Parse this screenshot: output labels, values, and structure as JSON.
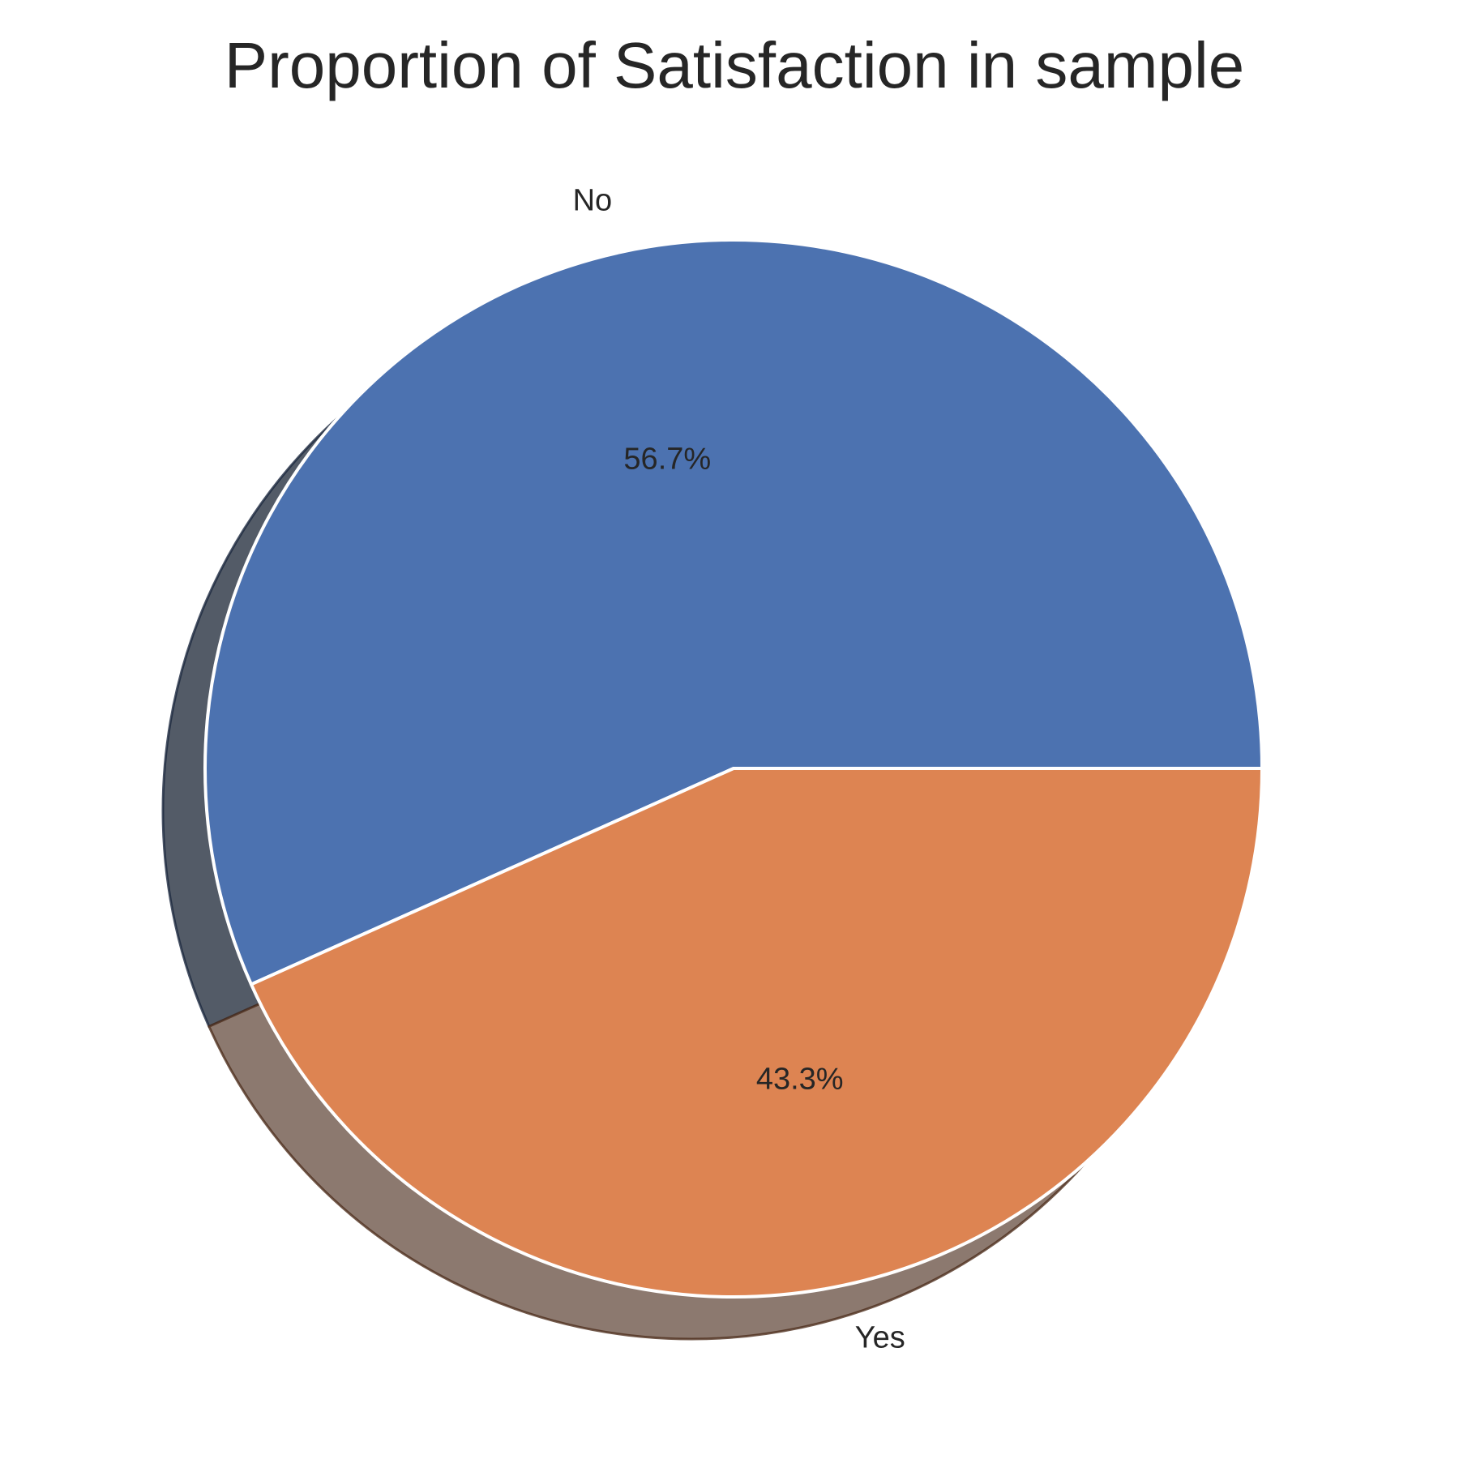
{
  "chart_data": {
    "type": "pie",
    "title": "Proportion of Satisfaction in sample",
    "categories": [
      "No",
      "Yes"
    ],
    "values": [
      56.7,
      43.3
    ],
    "percent_labels": [
      "56.7%",
      "43.3%"
    ],
    "colors": [
      "#4c72b0",
      "#dd8452"
    ],
    "start_angle_deg": 0,
    "direction": "counterclockwise",
    "shadow": true,
    "legend": "none"
  }
}
